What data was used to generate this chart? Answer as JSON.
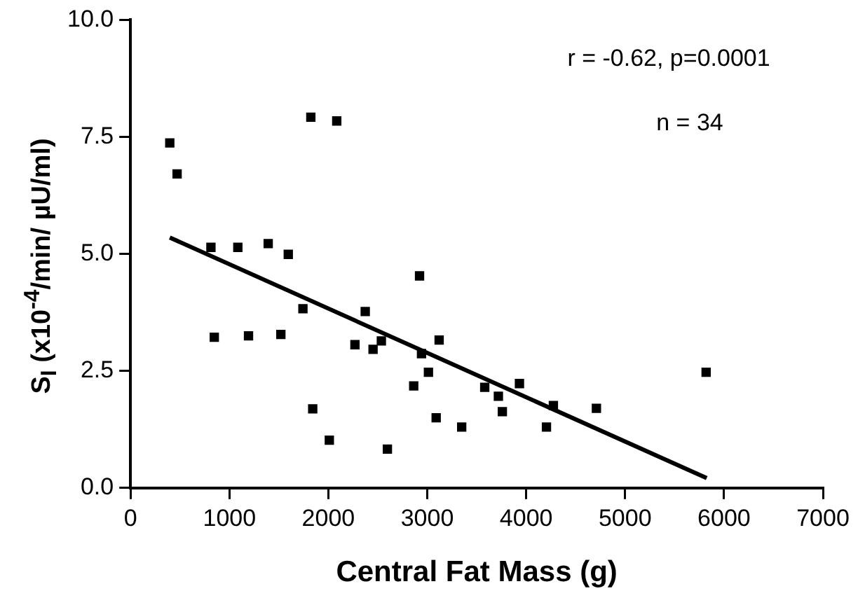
{
  "chart_data": {
    "type": "scatter",
    "xlabel": "Central Fat Mass (g)",
    "ylabel": "S$_{I}$ (x10$^{-4}$/min/ µU/ml)",
    "xlim": [
      0,
      7000
    ],
    "xticks": [
      0,
      1000,
      2000,
      3000,
      4000,
      5000,
      6000,
      7000
    ],
    "ylim": [
      0,
      10
    ],
    "yticks": [
      {
        "value": 0,
        "label": "0.0"
      },
      {
        "value": 2.5,
        "label": "2.5"
      },
      {
        "value": 5,
        "label": "5.0"
      },
      {
        "value": 7.5,
        "label": "7.5"
      },
      {
        "value": 10,
        "label": "10.0"
      }
    ],
    "grid": false,
    "legend": false,
    "series": [
      {
        "type": "scatter",
        "marker": "square",
        "color": "#000000",
        "x": [
          397,
          471,
          813,
          847,
          1085,
          1193,
          1392,
          1520,
          1595,
          1743,
          1823,
          1842,
          2010,
          2085,
          2269,
          2373,
          2452,
          2536,
          2597,
          2863,
          2922,
          2942,
          3012,
          3090,
          3120,
          3348,
          3581,
          3719,
          3759,
          3932,
          4205,
          4275,
          4710,
          5819
        ],
        "values": [
          7.37,
          6.71,
          5.14,
          3.22,
          5.14,
          3.25,
          5.22,
          3.28,
          4.99,
          3.83,
          7.92,
          1.69,
          1.02,
          7.84,
          3.06,
          3.77,
          2.96,
          3.14,
          0.83,
          2.18,
          4.53,
          2.87,
          2.47,
          1.5,
          3.16,
          1.3,
          2.15,
          1.96,
          1.63,
          2.23,
          1.3,
          1.76,
          1.7,
          2.47
        ]
      },
      {
        "type": "line",
        "marker": "none",
        "line_style": "solid",
        "color": "#000000",
        "x": [
          397,
          5825
        ],
        "values": [
          5.35,
          0.21
        ]
      }
    ],
    "annotations": [
      "r = -0.62, p=0.0001",
      "n = 34"
    ]
  }
}
